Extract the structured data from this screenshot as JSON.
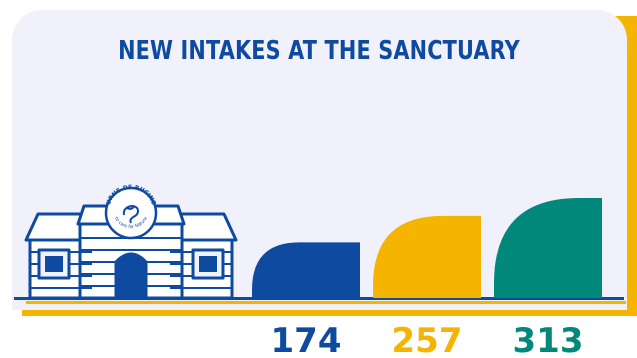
{
  "chart_data": {
    "type": "bar",
    "title": "NEW INTAKES AT THE SANCTUARY",
    "categories": [
      "",
      "",
      ""
    ],
    "values": [
      174,
      257,
      313
    ],
    "colors": [
      "#0d4aa0",
      "#f4b400",
      "#00897b"
    ],
    "ylim": [
      0,
      313
    ],
    "grid": false,
    "legend": "none"
  },
  "building": {
    "sign_top": "URNE DE BUCINE",
    "sign_bottom": "to care for Nature"
  },
  "colors": {
    "brand_blue": "#0d4aa0",
    "accent_yellow": "#f4b400",
    "accent_teal": "#00897b",
    "card_background": "#f1f1fb"
  }
}
